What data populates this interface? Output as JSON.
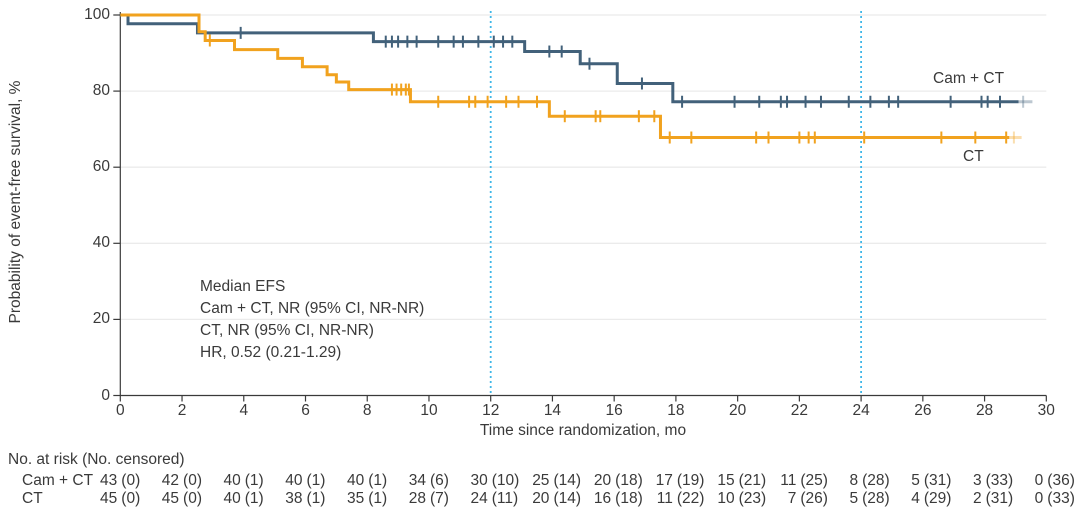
{
  "chart_data": {
    "type": "line",
    "subtype": "kaplan-meier-step",
    "x_axis": {
      "label": "Time since randomization, mo",
      "min": 0,
      "max": 30,
      "ticks": [
        0,
        2,
        4,
        6,
        8,
        10,
        12,
        14,
        16,
        18,
        20,
        22,
        24,
        26,
        28,
        30
      ]
    },
    "y_axis": {
      "label": "Probability of event-free survival, %",
      "min": 0,
      "max": 100,
      "ticks": [
        0,
        20,
        40,
        60,
        80,
        100
      ]
    },
    "grid": "horizontal-light",
    "reference_lines": {
      "x_values": [
        12,
        24
      ],
      "style": "dotted",
      "color": "#3fb7e8"
    },
    "series": [
      {
        "name": "Cam + CT",
        "color": "#42617a",
        "steps": [
          [
            0,
            100
          ],
          [
            0.25,
            97.7
          ],
          [
            2.5,
            95.3
          ],
          [
            8.2,
            93.0
          ],
          [
            13.1,
            90.4
          ],
          [
            14.9,
            87.2
          ],
          [
            16.1,
            82.0
          ],
          [
            17.9,
            77.2
          ]
        ],
        "solid_end": 29.1,
        "faded_end": 29.55,
        "censors": [
          [
            3.9,
            95.3
          ],
          [
            8.6,
            93
          ],
          [
            8.8,
            93
          ],
          [
            9.0,
            93
          ],
          [
            9.3,
            93
          ],
          [
            9.6,
            93
          ],
          [
            10.3,
            93
          ],
          [
            10.8,
            93
          ],
          [
            11.1,
            93
          ],
          [
            11.6,
            93
          ],
          [
            12.1,
            93
          ],
          [
            12.4,
            93
          ],
          [
            12.7,
            93
          ],
          [
            13.9,
            90.4
          ],
          [
            14.3,
            90.4
          ],
          [
            15.2,
            87.2
          ],
          [
            16.9,
            82
          ],
          [
            18.2,
            77.2
          ],
          [
            19.9,
            77.2
          ],
          [
            20.7,
            77.2
          ],
          [
            21.4,
            77.2
          ],
          [
            21.6,
            77.2
          ],
          [
            22.2,
            77.2
          ],
          [
            22.7,
            77.2
          ],
          [
            23.6,
            77.2
          ],
          [
            24.3,
            77.2
          ],
          [
            24.9,
            77.2
          ],
          [
            25.2,
            77.2
          ],
          [
            26.9,
            77.2
          ],
          [
            27.9,
            77.2
          ],
          [
            28.1,
            77.2
          ],
          [
            28.5,
            77.2
          ]
        ],
        "faded_censors": [
          [
            29.25,
            77.2
          ]
        ]
      },
      {
        "name": "CT",
        "color": "#f1a21e",
        "steps": [
          [
            0,
            100
          ],
          [
            2.55,
            95.6
          ],
          [
            2.75,
            93.3
          ],
          [
            3.7,
            90.9
          ],
          [
            5.1,
            88.6
          ],
          [
            5.9,
            86.4
          ],
          [
            6.7,
            84.3
          ],
          [
            7.0,
            82.4
          ],
          [
            7.4,
            80.4
          ],
          [
            9.4,
            77.2
          ],
          [
            13.9,
            73.4
          ],
          [
            17.5,
            67.8
          ]
        ],
        "solid_end": 28.8,
        "faded_end": 29.2,
        "censors": [
          [
            2.9,
            93.3
          ],
          [
            8.8,
            80.4
          ],
          [
            8.95,
            80.4
          ],
          [
            9.1,
            80.4
          ],
          [
            9.25,
            80.4
          ],
          [
            9.35,
            80.4
          ],
          [
            10.3,
            77.2
          ],
          [
            11.3,
            77.2
          ],
          [
            11.5,
            77.2
          ],
          [
            11.9,
            77.2
          ],
          [
            12.5,
            77.2
          ],
          [
            12.9,
            77.2
          ],
          [
            13.5,
            77.2
          ],
          [
            14.4,
            73.4
          ],
          [
            15.4,
            73.4
          ],
          [
            15.55,
            73.4
          ],
          [
            16.8,
            73.4
          ],
          [
            17.3,
            73.4
          ],
          [
            17.8,
            67.8
          ],
          [
            18.5,
            67.8
          ],
          [
            20.6,
            67.8
          ],
          [
            21.0,
            67.8
          ],
          [
            22.0,
            67.8
          ],
          [
            22.3,
            67.8
          ],
          [
            22.5,
            67.8
          ],
          [
            24.1,
            67.8
          ],
          [
            26.6,
            67.8
          ],
          [
            27.7,
            67.8
          ],
          [
            28.7,
            67.8
          ]
        ],
        "faded_censors": [
          [
            28.95,
            67.8
          ]
        ]
      }
    ],
    "curve_labels": [
      {
        "text": "Cam + CT"
      },
      {
        "text": "CT"
      }
    ],
    "annotation": {
      "lines": [
        "Median EFS",
        "Cam + CT, NR (95% CI, NR-NR)",
        "CT, NR (95% CI, NR-NR)",
        "HR, 0.52 (0.21-1.29)"
      ]
    },
    "risk_table": {
      "header": "No. at risk (No. censored)",
      "times": [
        0,
        2,
        4,
        6,
        8,
        10,
        12,
        14,
        16,
        18,
        20,
        22,
        24,
        26,
        28,
        30
      ],
      "rows": [
        {
          "label": "Cam + CT",
          "values": [
            "43 (0)",
            "42 (0)",
            "40 (1)",
            "40 (1)",
            "40 (1)",
            "34 (6)",
            "30 (10)",
            "25 (14)",
            "20 (18)",
            "17 (19)",
            "15 (21)",
            "11 (25)",
            "8 (28)",
            "5 (31)",
            "3 (33)",
            "0 (36)"
          ]
        },
        {
          "label": "CT",
          "values": [
            "45 (0)",
            "45 (0)",
            "40 (1)",
            "38 (1)",
            "35 (1)",
            "28 (7)",
            "24 (11)",
            "20 (14)",
            "16 (18)",
            "11 (22)",
            "10 (23)",
            "7 (26)",
            "5 (28)",
            "4 (29)",
            "2 (31)",
            "0 (33)"
          ]
        }
      ]
    },
    "colors": {
      "axis_text": "#3a3a3a",
      "gridline": "#ebebeb",
      "reference": "#3fb7e8",
      "cam_ct": "#42617a",
      "ct": "#f1a21e"
    }
  }
}
